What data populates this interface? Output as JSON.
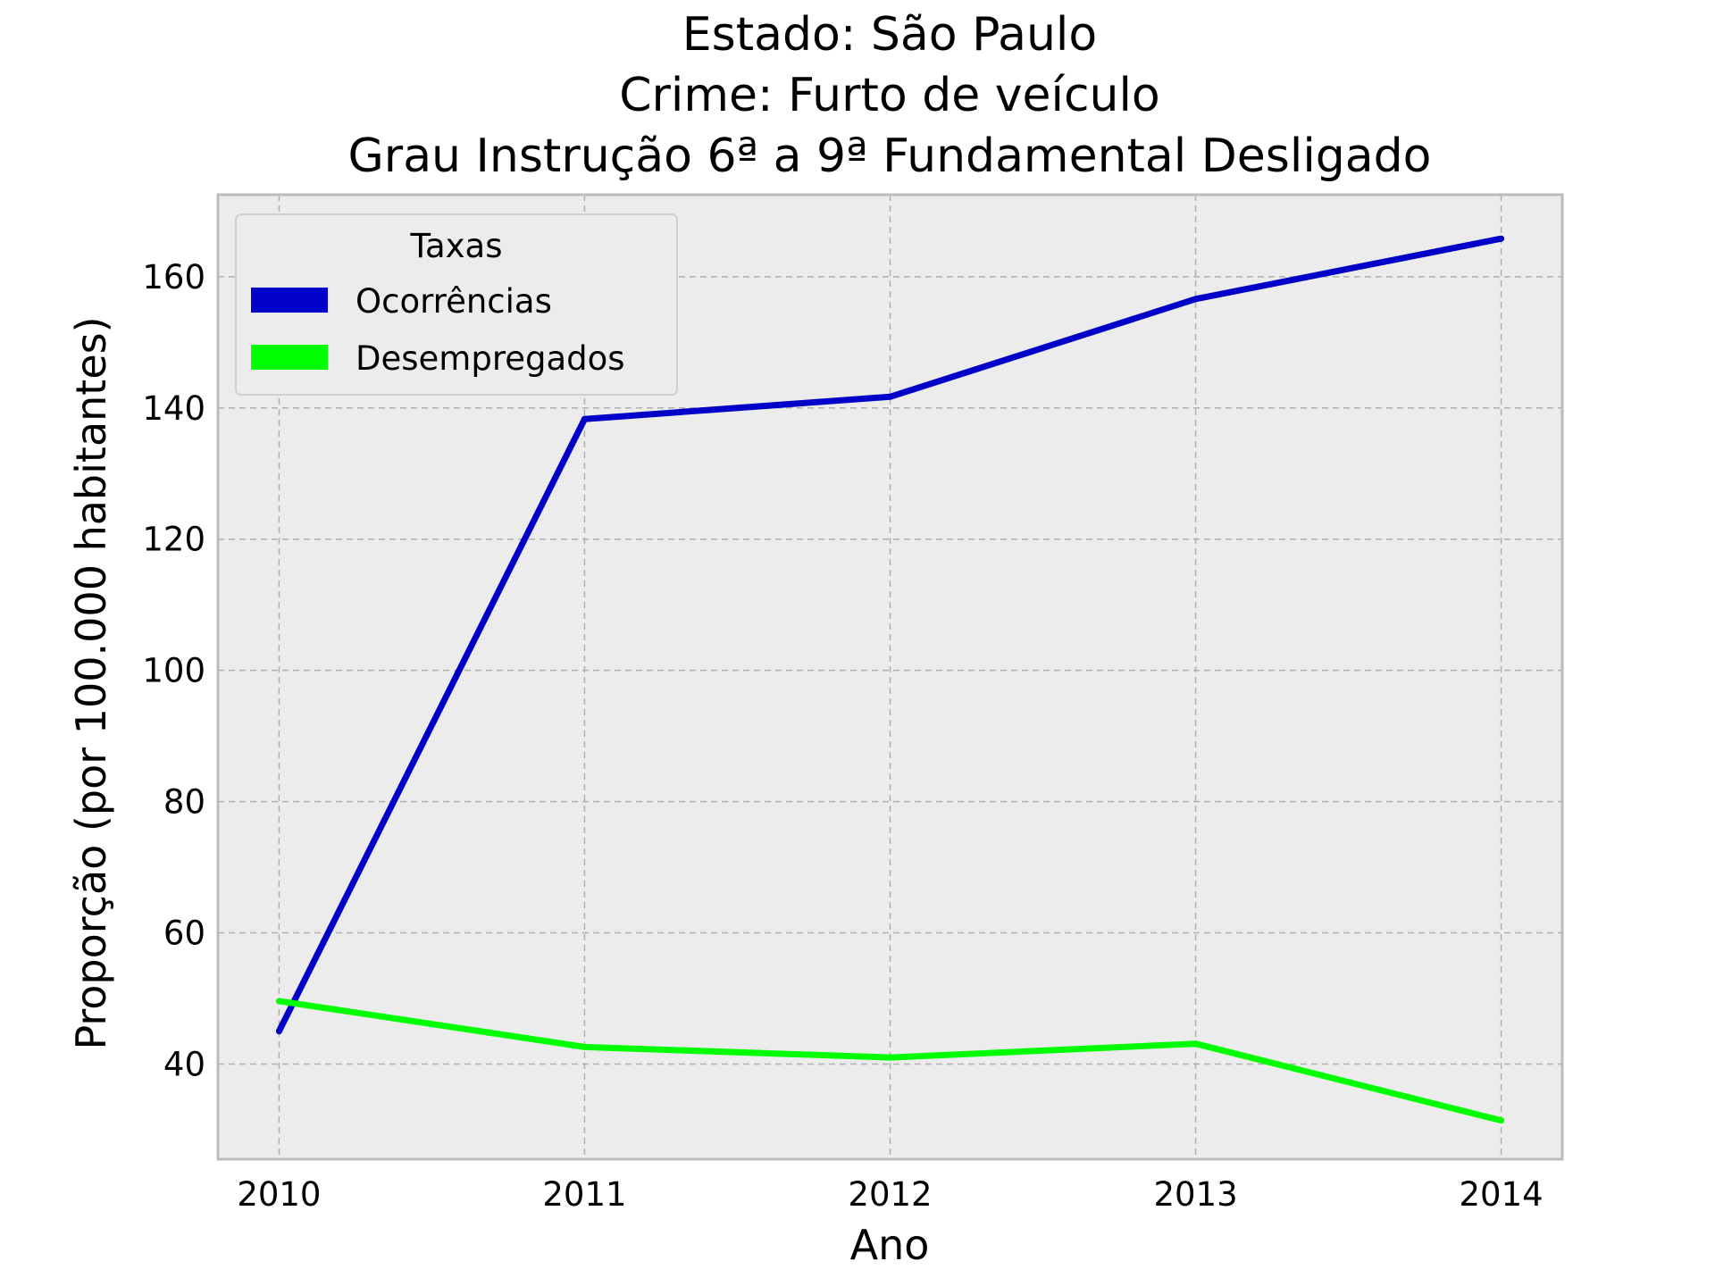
{
  "chart_data": {
    "type": "line",
    "title_lines": [
      "Estado: São Paulo",
      "Crime: Furto de veículo",
      "Grau Instrução  6ª a 9ª Fundamental   Desligado"
    ],
    "xlabel": "Ano",
    "ylabel": "Proporção (por 100.000 habitantes)",
    "x": [
      2010,
      2011,
      2012,
      2013,
      2014
    ],
    "x_tick_labels": [
      "2010",
      "2011",
      "2012",
      "2013",
      "2014"
    ],
    "y_ticks": [
      40,
      60,
      80,
      100,
      120,
      140,
      160
    ],
    "y_tick_labels": [
      "40",
      "60",
      "80",
      "100",
      "120",
      "140",
      "160"
    ],
    "xlim": [
      2009.8,
      2014.2
    ],
    "ylim": [
      25.5,
      172.5
    ],
    "grid": true,
    "legend": {
      "title": "Taxas",
      "placement": "top-left"
    },
    "series": [
      {
        "name": "Ocorrências",
        "color": "#0000c8",
        "values": [
          45.0,
          138.3,
          141.7,
          156.6,
          165.8
        ]
      },
      {
        "name": "Desempregados",
        "color": "#00ff00",
        "values": [
          49.6,
          42.6,
          41.0,
          43.1,
          31.4
        ]
      }
    ],
    "background_color": "#ececec",
    "frame_color": "#bcbcbc"
  }
}
